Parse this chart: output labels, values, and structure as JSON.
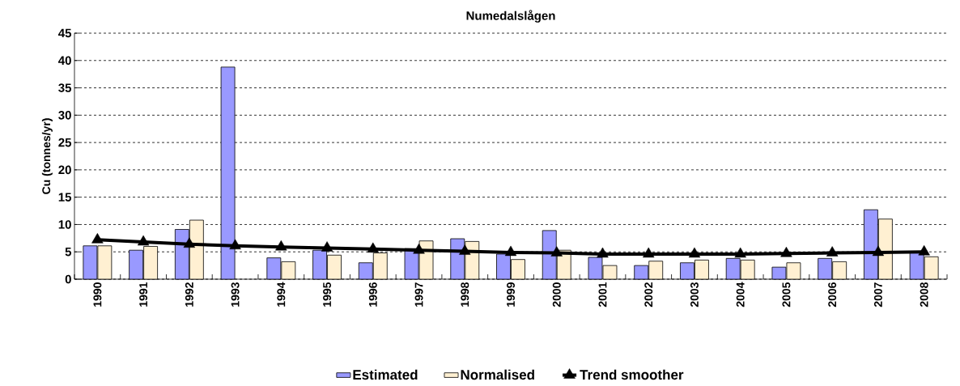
{
  "chart_data": {
    "type": "bar",
    "title": "Numedalslågen",
    "ylabel": "Cu (tonnes/yr)",
    "categories": [
      "1990",
      "1991",
      "1992",
      "1993",
      "1994",
      "1995",
      "1996",
      "1997",
      "1998",
      "1999",
      "2000",
      "2001",
      "2002",
      "2003",
      "2004",
      "2005",
      "2006",
      "2007",
      "2008"
    ],
    "series": [
      {
        "name": "Estimated",
        "color": "#9999ff",
        "values": [
          6.1,
          5.3,
          9.1,
          38.8,
          3.9,
          5.3,
          3.0,
          5.6,
          7.4,
          4.6,
          8.9,
          4.0,
          2.5,
          3.0,
          3.8,
          2.2,
          3.8,
          12.7,
          4.9
        ]
      },
      {
        "name": "Normalised",
        "color": "#fff0d2",
        "values": [
          6.1,
          6.0,
          10.8,
          null,
          3.2,
          4.4,
          4.8,
          7.0,
          6.9,
          3.6,
          5.3,
          2.5,
          3.3,
          3.5,
          3.5,
          3.0,
          3.2,
          11.0,
          4.1
        ]
      },
      {
        "name": "Trend smoother",
        "type": "line",
        "color": "#000000",
        "marker": "triangle",
        "values": [
          7.2,
          6.8,
          6.4,
          6.1,
          5.9,
          5.7,
          5.5,
          5.3,
          5.1,
          4.9,
          4.8,
          4.6,
          4.6,
          4.6,
          4.6,
          4.7,
          4.8,
          4.9,
          5.0
        ]
      }
    ],
    "ylim": [
      0,
      45
    ],
    "yticks": [
      0,
      5,
      10,
      15,
      20,
      25,
      30,
      35,
      40,
      45
    ],
    "grid": "y",
    "legend": "bottom"
  }
}
